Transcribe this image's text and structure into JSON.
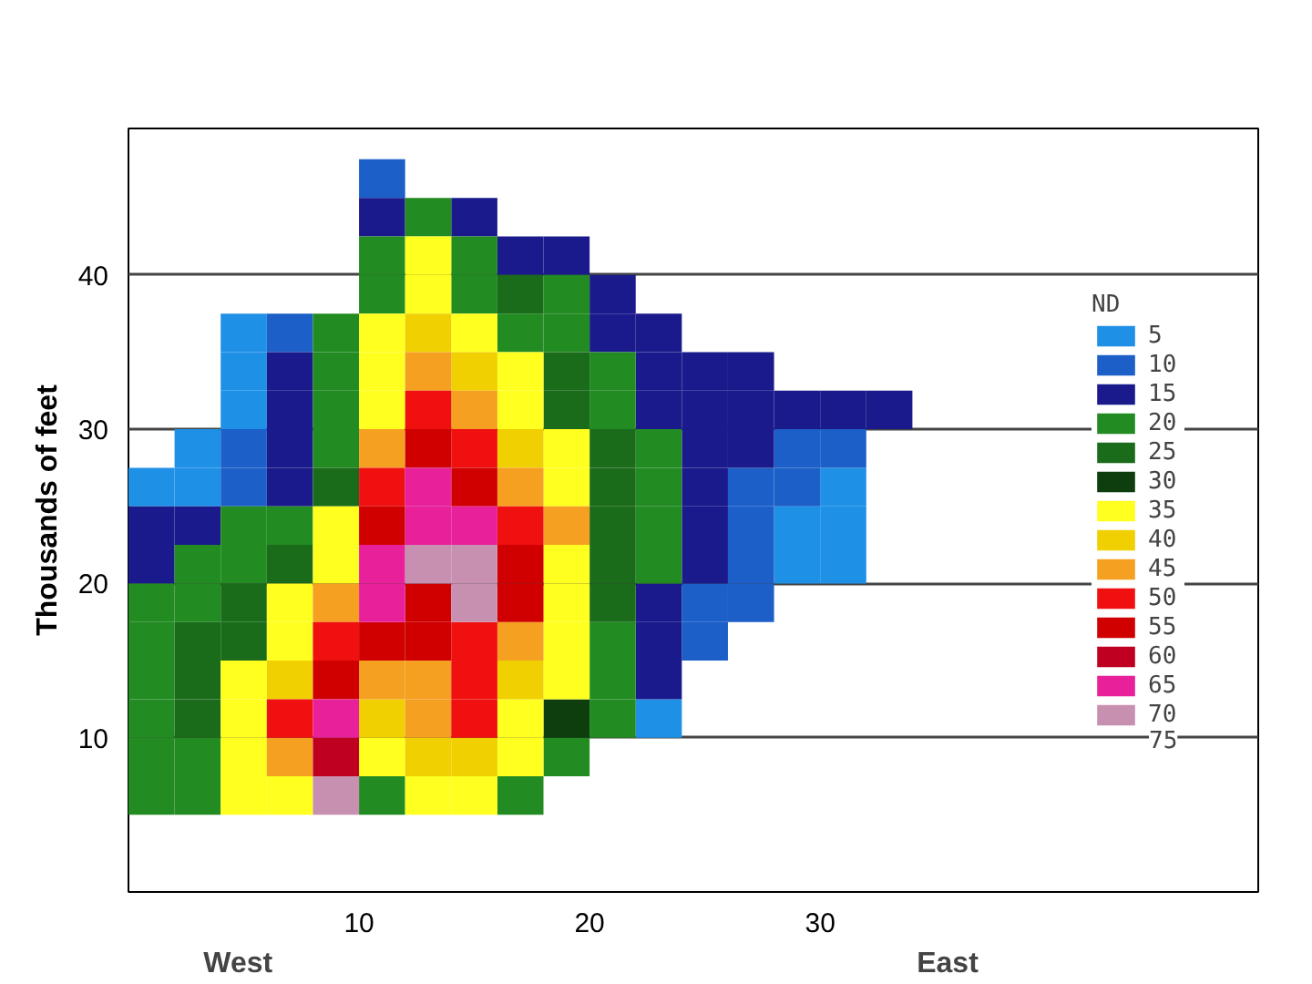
{
  "chart_data": {
    "type": "scatter",
    "marker": "square",
    "ylabel": "Thousands of feet",
    "legend_title": "ND",
    "annotations": [
      "West",
      "East",
      "75"
    ],
    "legend": "right",
    "series": [
      {
        "name": "5",
        "color": "#1e90e6",
        "x": [
          5,
          5,
          5,
          3,
          1,
          3,
          31,
          29,
          31,
          29,
          31,
          23
        ],
        "values": [
          36.25,
          33.75,
          31.25,
          28.75,
          26.25,
          26.25,
          26.25,
          23.75,
          23.75,
          21.25,
          21.25,
          11.25
        ]
      },
      {
        "name": "10",
        "color": "#1c5fc8",
        "x": [
          11,
          7,
          5,
          29,
          31,
          5,
          27,
          29,
          27,
          27,
          25,
          27,
          25
        ],
        "values": [
          46.25,
          36.25,
          28.75,
          28.75,
          28.75,
          26.25,
          26.25,
          26.25,
          23.75,
          21.25,
          18.75,
          18.75,
          16.25
        ]
      },
      {
        "name": "15",
        "color": "#1a1a8c",
        "x": [
          11,
          15,
          17,
          19,
          21,
          21,
          23,
          7,
          23,
          25,
          27,
          7,
          23,
          25,
          27,
          29,
          31,
          33,
          7,
          25,
          27,
          7,
          25,
          1,
          3,
          25,
          1,
          25,
          23,
          23,
          23
        ],
        "values": [
          43.75,
          43.75,
          41.25,
          41.25,
          38.75,
          36.25,
          36.25,
          33.75,
          33.75,
          33.75,
          33.75,
          31.25,
          31.25,
          31.25,
          31.25,
          31.25,
          31.25,
          31.25,
          28.75,
          28.75,
          28.75,
          26.25,
          26.25,
          23.75,
          23.75,
          23.75,
          21.25,
          21.25,
          18.75,
          16.25,
          13.75
        ]
      },
      {
        "name": "20",
        "color": "#228b22",
        "x": [
          13,
          11,
          15,
          11,
          15,
          19,
          9,
          17,
          19,
          9,
          21,
          9,
          21,
          9,
          23,
          23,
          5,
          7,
          23,
          3,
          5,
          23,
          1,
          3,
          1,
          21,
          1,
          21,
          1,
          21,
          1,
          3,
          19,
          1,
          3,
          11,
          17
        ],
        "values": [
          43.75,
          41.25,
          41.25,
          38.75,
          38.75,
          38.75,
          36.25,
          36.25,
          36.25,
          33.75,
          33.75,
          31.25,
          31.25,
          28.75,
          28.75,
          26.25,
          23.75,
          23.75,
          23.75,
          21.25,
          21.25,
          21.25,
          18.75,
          18.75,
          16.25,
          16.25,
          13.75,
          13.75,
          11.25,
          11.25,
          8.75,
          8.75,
          8.75,
          6.25,
          6.25,
          6.25,
          6.25
        ]
      },
      {
        "name": "25",
        "color": "#1a6b1a",
        "x": [
          17,
          19,
          19,
          21,
          9,
          21,
          21,
          7,
          21,
          5,
          21,
          3,
          5,
          3,
          3
        ],
        "values": [
          38.75,
          33.75,
          31.25,
          28.75,
          26.25,
          26.25,
          23.75,
          21.25,
          21.25,
          18.75,
          18.75,
          16.25,
          16.25,
          13.75,
          11.25
        ]
      },
      {
        "name": "30",
        "color": "#0e3d0e",
        "x": [
          19
        ],
        "values": [
          11.25
        ]
      },
      {
        "name": "35",
        "color": "#ffff20",
        "x": [
          13,
          13,
          11,
          15,
          11,
          17,
          11,
          17,
          19,
          19,
          9,
          9,
          19,
          7,
          19,
          7,
          19,
          5,
          19,
          5,
          17,
          5,
          11,
          17,
          5,
          7,
          13,
          15
        ],
        "values": [
          41.25,
          38.75,
          36.25,
          36.25,
          33.75,
          33.75,
          31.25,
          31.25,
          28.75,
          26.25,
          23.75,
          21.25,
          21.25,
          18.75,
          18.75,
          16.25,
          16.25,
          13.75,
          13.75,
          11.25,
          11.25,
          8.75,
          8.75,
          8.75,
          6.25,
          6.25,
          6.25,
          6.25
        ]
      },
      {
        "name": "40",
        "color": "#f0d000",
        "x": [
          13,
          15,
          17,
          7,
          17,
          11,
          13,
          15
        ],
        "values": [
          36.25,
          33.75,
          28.75,
          13.75,
          13.75,
          11.25,
          8.75,
          8.75
        ]
      },
      {
        "name": "45",
        "color": "#f5a020",
        "x": [
          13,
          15,
          11,
          17,
          19,
          9,
          17,
          11,
          13,
          13,
          7
        ],
        "values": [
          33.75,
          31.25,
          28.75,
          26.25,
          23.75,
          18.75,
          16.25,
          13.75,
          13.75,
          11.25,
          8.75
        ]
      },
      {
        "name": "50",
        "color": "#f01010",
        "x": [
          13,
          15,
          11,
          17,
          9,
          15,
          15,
          7,
          15
        ],
        "values": [
          31.25,
          28.75,
          26.25,
          23.75,
          16.25,
          16.25,
          13.75,
          11.25,
          11.25
        ]
      },
      {
        "name": "55",
        "color": "#d00000",
        "x": [
          13,
          15,
          11,
          17,
          13,
          17,
          11,
          13,
          9
        ],
        "values": [
          28.75,
          26.25,
          23.75,
          21.25,
          18.75,
          18.75,
          16.25,
          16.25,
          13.75
        ]
      },
      {
        "name": "60",
        "color": "#c00020",
        "x": [
          9
        ],
        "values": [
          8.75
        ]
      },
      {
        "name": "65",
        "color": "#e8209a",
        "x": [
          13,
          13,
          15,
          11,
          11,
          9
        ],
        "values": [
          26.25,
          23.75,
          23.75,
          21.25,
          18.75,
          11.25
        ]
      },
      {
        "name": "70",
        "color": "#c890b0",
        "x": [
          13,
          15,
          15,
          9
        ],
        "values": [
          21.25,
          21.25,
          18.75,
          6.25
        ]
      }
    ],
    "xlim": [
      0,
      49
    ],
    "ylim": [
      0,
      49.5
    ],
    "xticks": [
      10,
      20,
      30
    ],
    "yticks": [
      10,
      20,
      30,
      40
    ],
    "grid": "y"
  }
}
